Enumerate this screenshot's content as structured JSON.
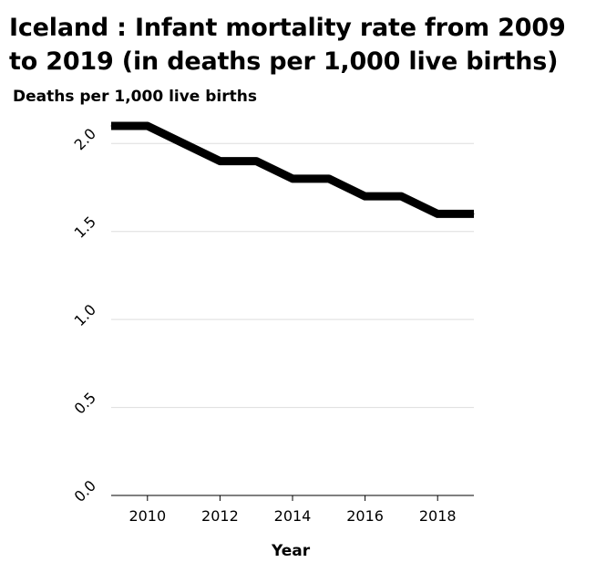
{
  "chart_data": {
    "type": "line",
    "title": "Iceland : Infant mortality rate from 2009 to 2019 (in deaths per 1,000 live births)",
    "ylabel": "Deaths per 1,000 live births",
    "xlabel": "Year",
    "x": [
      2009,
      2010,
      2011,
      2012,
      2013,
      2014,
      2015,
      2016,
      2017,
      2018,
      2019
    ],
    "series": [
      {
        "values": [
          2.1,
          2.1,
          2.0,
          1.9,
          1.9,
          1.8,
          1.8,
          1.7,
          1.7,
          1.6,
          1.6
        ]
      }
    ],
    "xlim": [
      2009,
      2019
    ],
    "ylim": [
      0,
      2.1
    ],
    "xticks": [
      "2010",
      "2012",
      "2014",
      "2016",
      "2018"
    ],
    "yticks": [
      "0.0",
      "0.5",
      "1.0",
      "1.5",
      "2.0"
    ],
    "grid": "horizontal",
    "legend": "none",
    "line_color": "#000000",
    "grid_color": "#dddddd"
  }
}
